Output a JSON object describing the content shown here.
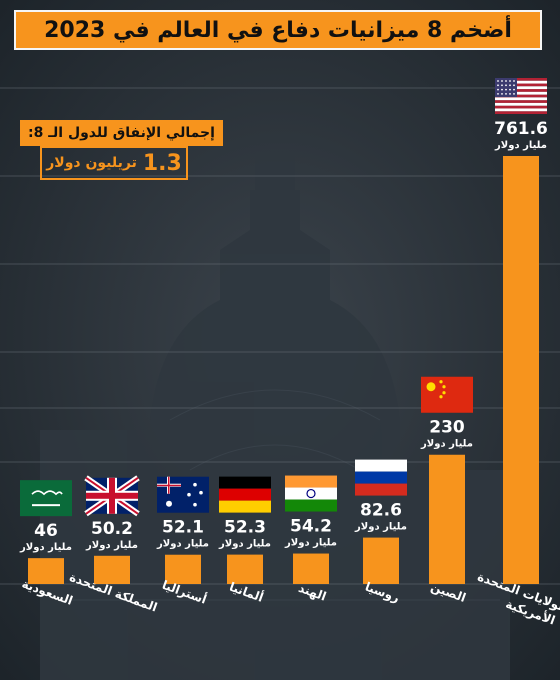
{
  "title": "أضخم 8 ميزانيات دفاع في العالم في 2023",
  "summary": {
    "label": "إجمالي الإنفاق للدول الـ 8:",
    "value": "1.3",
    "unit": "تريليون دولار"
  },
  "colors": {
    "accent": "#f7941d",
    "background": "#232a31",
    "text": "#ffffff"
  },
  "chart_data": {
    "type": "bar",
    "unit_label": "مليار دولار",
    "categories": [
      "السعودية",
      "المملكة المتحدة",
      "أستراليا",
      "ألمانيا",
      "الهند",
      "روسيا",
      "الصين",
      "الولايات المتحدة الأمريكية"
    ],
    "category_lines": [
      [
        "السعودية"
      ],
      [
        "المملكة المتحدة"
      ],
      [
        "أستراليا"
      ],
      [
        "ألمانيا"
      ],
      [
        "الهند"
      ],
      [
        "روسيا"
      ],
      [
        "الصين"
      ],
      [
        "الولايات المتحدة",
        "الأمريكية"
      ]
    ],
    "values": [
      46,
      50.2,
      52.1,
      52.3,
      54.2,
      82.6,
      230,
      761.6
    ],
    "value_labels": [
      "46",
      "50.2",
      "52.1",
      "52.3",
      "54.2",
      "82.6",
      "230",
      "761.6"
    ],
    "flags": [
      "saudi-flag",
      "uk-flag",
      "australia-flag",
      "germany-flag",
      "india-flag",
      "russia-flag",
      "china-flag",
      "usa-flag"
    ]
  }
}
